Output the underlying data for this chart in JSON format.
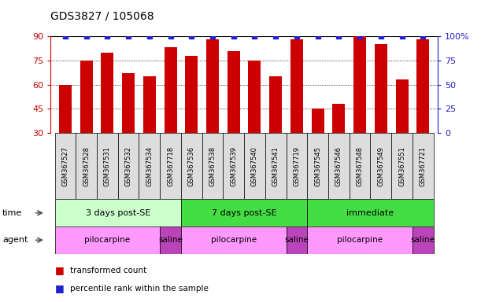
{
  "title": "GDS3827 / 105068",
  "samples": [
    "GSM367527",
    "GSM367528",
    "GSM367531",
    "GSM367532",
    "GSM367534",
    "GSM367718",
    "GSM367536",
    "GSM367538",
    "GSM367539",
    "GSM367540",
    "GSM367541",
    "GSM367719",
    "GSM367545",
    "GSM367546",
    "GSM367548",
    "GSM367549",
    "GSM367551",
    "GSM367721"
  ],
  "transformed_count": [
    60,
    75,
    80,
    67,
    65,
    83,
    78,
    88,
    81,
    75,
    65,
    88,
    45,
    48,
    90,
    85,
    63,
    88
  ],
  "percentile_rank": [
    100,
    100,
    100,
    100,
    100,
    100,
    100,
    100,
    100,
    100,
    100,
    100,
    100,
    100,
    100,
    100,
    100,
    100
  ],
  "ylim_left": [
    30,
    90
  ],
  "ylim_right": [
    0,
    100
  ],
  "yticks_left": [
    30,
    45,
    60,
    75,
    90
  ],
  "yticks_right": [
    0,
    25,
    50,
    75,
    100
  ],
  "bar_color": "#CC0000",
  "dot_color": "#2222CC",
  "left_axis_color": "#CC0000",
  "right_axis_color": "#2222CC",
  "time_groups": [
    {
      "label": "3 days post-SE",
      "start": 0,
      "end": 5,
      "color": "#CCFFCC"
    },
    {
      "label": "7 days post-SE",
      "start": 6,
      "end": 11,
      "color": "#44DD44"
    },
    {
      "label": "immediate",
      "start": 12,
      "end": 17,
      "color": "#44DD44"
    }
  ],
  "agent_groups": [
    {
      "label": "pilocarpine",
      "start": 0,
      "end": 4,
      "color": "#FF99FF"
    },
    {
      "label": "saline",
      "start": 5,
      "end": 5,
      "color": "#BB44BB"
    },
    {
      "label": "pilocarpine",
      "start": 6,
      "end": 10,
      "color": "#FF99FF"
    },
    {
      "label": "saline",
      "start": 11,
      "end": 11,
      "color": "#BB44BB"
    },
    {
      "label": "pilocarpine",
      "start": 12,
      "end": 16,
      "color": "#FF99FF"
    },
    {
      "label": "saline",
      "start": 17,
      "end": 17,
      "color": "#BB44BB"
    }
  ],
  "legend_items": [
    {
      "label": "transformed count",
      "color": "#CC0000"
    },
    {
      "label": "percentile rank within the sample",
      "color": "#2222CC"
    }
  ],
  "time_label": "time",
  "agent_label": "agent"
}
